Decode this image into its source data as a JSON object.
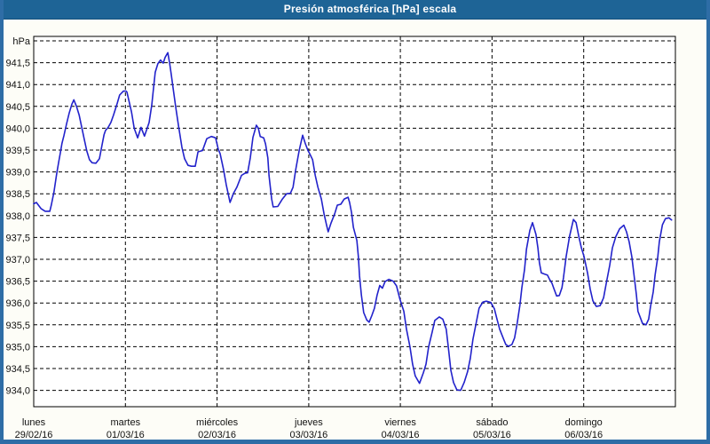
{
  "window": {
    "title": "Presión atmosférica [hPa] escala"
  },
  "colors": {
    "titlebar_bg": "#1e6496",
    "window_border": "#2e6da6",
    "content_bg": "#fdfdf7",
    "plot_bg": "#ffffff",
    "grid": "#000000",
    "line": "#2222cb",
    "label": "#111111"
  },
  "chart_data": {
    "type": "line",
    "title": "Presión atmosférica [hPa] escala",
    "grid": {
      "style": "dashed",
      "on": true
    },
    "legend": "none",
    "y_axis": {
      "unit_label": "hPa",
      "min": 934.0,
      "max": 941.5,
      "tick_step": 0.5,
      "top_gridline_value": 942.0,
      "decimal_separator": ",",
      "tick_values": [
        941.5,
        941.0,
        940.5,
        940.0,
        939.5,
        939.0,
        938.5,
        938.0,
        937.5,
        937.0,
        936.5,
        936.0,
        935.5,
        935.0,
        934.5,
        934.0
      ],
      "tick_labels": [
        "941,5",
        "941,0",
        "940,5",
        "940,0",
        "939,5",
        "939,0",
        "938,5",
        "938,0",
        "937,5",
        "937,0",
        "936,5",
        "936,0",
        "935,5",
        "935,0",
        "934,5",
        "934,0"
      ]
    },
    "x_axis": {
      "hours_total": 168,
      "hours_per_day": 24,
      "days": [
        {
          "name": "lunes",
          "date": "29/02/16"
        },
        {
          "name": "martes",
          "date": "01/03/16"
        },
        {
          "name": "miércoles",
          "date": "02/03/16"
        },
        {
          "name": "jueves",
          "date": "03/03/16"
        },
        {
          "name": "viernes",
          "date": "04/03/16"
        },
        {
          "name": "sábado",
          "date": "05/03/16"
        },
        {
          "name": "domingo",
          "date": "06/03/16"
        }
      ]
    },
    "series": [
      {
        "name": "Presión atmosférica",
        "unit": "hPa",
        "color": "#2222cb",
        "points": [
          [
            0,
            938.27
          ],
          [
            0.7,
            938.3
          ],
          [
            1.9,
            938.16
          ],
          [
            3.0,
            938.1
          ],
          [
            4.2,
            938.1
          ],
          [
            4.6,
            938.24
          ],
          [
            5.3,
            938.54
          ],
          [
            6.0,
            938.95
          ],
          [
            6.5,
            939.21
          ],
          [
            7.0,
            939.45
          ],
          [
            7.4,
            939.65
          ],
          [
            7.9,
            939.83
          ],
          [
            8.6,
            940.1
          ],
          [
            9.3,
            940.35
          ],
          [
            10.0,
            940.55
          ],
          [
            10.5,
            940.65
          ],
          [
            11.2,
            940.5
          ],
          [
            11.9,
            940.3
          ],
          [
            12.5,
            940.05
          ],
          [
            13.2,
            939.76
          ],
          [
            13.9,
            939.48
          ],
          [
            14.6,
            939.28
          ],
          [
            15.3,
            939.21
          ],
          [
            16.3,
            939.2
          ],
          [
            17.2,
            939.3
          ],
          [
            17.9,
            939.62
          ],
          [
            18.4,
            939.85
          ],
          [
            18.8,
            939.95
          ],
          [
            19.5,
            940.02
          ],
          [
            20.2,
            940.13
          ],
          [
            20.9,
            940.3
          ],
          [
            21.8,
            940.55
          ],
          [
            22.5,
            940.76
          ],
          [
            23.5,
            940.85
          ],
          [
            24.2,
            940.85
          ],
          [
            24.4,
            940.83
          ],
          [
            25.6,
            940.37
          ],
          [
            26.3,
            940.0
          ],
          [
            27.2,
            939.78
          ],
          [
            28.1,
            940.02
          ],
          [
            29.0,
            939.82
          ],
          [
            30.2,
            940.13
          ],
          [
            30.9,
            940.53
          ],
          [
            31.4,
            940.94
          ],
          [
            31.8,
            941.28
          ],
          [
            32.5,
            941.48
          ],
          [
            33.2,
            941.56
          ],
          [
            33.9,
            941.49
          ],
          [
            34.4,
            941.62
          ],
          [
            35.1,
            941.73
          ],
          [
            35.6,
            941.48
          ],
          [
            36.0,
            941.24
          ],
          [
            36.5,
            940.91
          ],
          [
            37.2,
            940.47
          ],
          [
            37.9,
            940.06
          ],
          [
            38.8,
            939.56
          ],
          [
            39.5,
            939.3
          ],
          [
            40.4,
            939.15
          ],
          [
            41.3,
            939.13
          ],
          [
            42.3,
            939.13
          ],
          [
            43.0,
            939.46
          ],
          [
            44.2,
            939.49
          ],
          [
            45.3,
            939.76
          ],
          [
            46.5,
            939.81
          ],
          [
            47.6,
            939.78
          ],
          [
            48.3,
            939.52
          ],
          [
            48.8,
            939.42
          ],
          [
            49.7,
            939.05
          ],
          [
            50.4,
            938.71
          ],
          [
            51.4,
            938.3
          ],
          [
            52.3,
            938.51
          ],
          [
            53.2,
            938.65
          ],
          [
            54.4,
            938.92
          ],
          [
            55.3,
            938.97
          ],
          [
            56.0,
            938.98
          ],
          [
            56.7,
            939.32
          ],
          [
            57.4,
            939.79
          ],
          [
            58.3,
            940.07
          ],
          [
            58.8,
            940.0
          ],
          [
            59.3,
            939.81
          ],
          [
            60.2,
            939.78
          ],
          [
            60.7,
            939.64
          ],
          [
            61.3,
            939.32
          ],
          [
            61.6,
            938.92
          ],
          [
            62.3,
            938.38
          ],
          [
            62.7,
            938.2
          ],
          [
            63.9,
            938.21
          ],
          [
            65.1,
            938.38
          ],
          [
            66.2,
            938.5
          ],
          [
            67.2,
            938.51
          ],
          [
            67.9,
            938.65
          ],
          [
            68.6,
            939.05
          ],
          [
            69.5,
            939.49
          ],
          [
            70.4,
            939.84
          ],
          [
            71.1,
            939.65
          ],
          [
            71.8,
            939.49
          ],
          [
            72.3,
            939.41
          ],
          [
            73.0,
            939.28
          ],
          [
            73.7,
            938.92
          ],
          [
            74.4,
            938.65
          ],
          [
            75.3,
            938.38
          ],
          [
            76.0,
            938.04
          ],
          [
            76.7,
            937.77
          ],
          [
            77.1,
            937.63
          ],
          [
            77.8,
            937.82
          ],
          [
            78.8,
            938.04
          ],
          [
            79.5,
            938.24
          ],
          [
            80.4,
            938.26
          ],
          [
            81.3,
            938.38
          ],
          [
            82.3,
            938.42
          ],
          [
            82.7,
            938.3
          ],
          [
            83.2,
            938.07
          ],
          [
            83.7,
            937.73
          ],
          [
            84.6,
            937.43
          ],
          [
            85.0,
            937.06
          ],
          [
            85.3,
            936.62
          ],
          [
            85.8,
            936.18
          ],
          [
            86.4,
            935.78
          ],
          [
            87.2,
            935.61
          ],
          [
            87.8,
            935.56
          ],
          [
            88.5,
            935.71
          ],
          [
            89.2,
            935.88
          ],
          [
            89.9,
            936.18
          ],
          [
            90.6,
            936.4
          ],
          [
            91.3,
            936.34
          ],
          [
            92.0,
            936.49
          ],
          [
            93.0,
            936.54
          ],
          [
            94.1,
            936.5
          ],
          [
            95.0,
            936.39
          ],
          [
            95.9,
            936.08
          ],
          [
            96.9,
            935.81
          ],
          [
            97.6,
            935.4
          ],
          [
            98.5,
            935.0
          ],
          [
            99.2,
            934.6
          ],
          [
            99.9,
            934.33
          ],
          [
            101.0,
            934.16
          ],
          [
            102.0,
            934.4
          ],
          [
            102.7,
            934.6
          ],
          [
            103.4,
            935.0
          ],
          [
            104.3,
            935.33
          ],
          [
            105.0,
            935.6
          ],
          [
            106.2,
            935.68
          ],
          [
            107.1,
            935.63
          ],
          [
            108.0,
            935.4
          ],
          [
            108.7,
            934.87
          ],
          [
            109.2,
            934.46
          ],
          [
            109.9,
            934.18
          ],
          [
            110.8,
            934.01
          ],
          [
            111.8,
            934.0
          ],
          [
            112.7,
            934.18
          ],
          [
            113.6,
            934.43
          ],
          [
            114.3,
            934.73
          ],
          [
            115.0,
            935.17
          ],
          [
            115.9,
            935.57
          ],
          [
            116.6,
            935.88
          ],
          [
            117.6,
            936.02
          ],
          [
            118.5,
            936.04
          ],
          [
            119.7,
            936.01
          ],
          [
            120.6,
            935.87
          ],
          [
            121.3,
            935.63
          ],
          [
            122.0,
            935.4
          ],
          [
            122.9,
            935.2
          ],
          [
            123.6,
            935.05
          ],
          [
            124.3,
            935.01
          ],
          [
            125.2,
            935.05
          ],
          [
            125.9,
            935.2
          ],
          [
            126.6,
            935.54
          ],
          [
            127.3,
            935.95
          ],
          [
            127.8,
            936.35
          ],
          [
            128.5,
            936.76
          ],
          [
            129.0,
            937.23
          ],
          [
            129.9,
            937.66
          ],
          [
            130.6,
            937.84
          ],
          [
            131.5,
            937.57
          ],
          [
            132.0,
            937.26
          ],
          [
            132.4,
            936.92
          ],
          [
            132.9,
            936.69
          ],
          [
            133.8,
            936.66
          ],
          [
            134.5,
            936.64
          ],
          [
            135.0,
            936.55
          ],
          [
            135.7,
            936.45
          ],
          [
            136.2,
            936.33
          ],
          [
            136.9,
            936.16
          ],
          [
            137.6,
            936.17
          ],
          [
            138.3,
            936.35
          ],
          [
            138.7,
            936.58
          ],
          [
            139.4,
            937.06
          ],
          [
            140.3,
            937.53
          ],
          [
            141.3,
            937.91
          ],
          [
            142.0,
            937.84
          ],
          [
            142.7,
            937.53
          ],
          [
            143.4,
            937.26
          ],
          [
            144.1,
            937.06
          ],
          [
            145.0,
            936.69
          ],
          [
            145.7,
            936.32
          ],
          [
            146.4,
            936.05
          ],
          [
            147.3,
            935.92
          ],
          [
            148.3,
            935.94
          ],
          [
            149.2,
            936.12
          ],
          [
            149.9,
            936.45
          ],
          [
            150.8,
            936.86
          ],
          [
            151.5,
            937.26
          ],
          [
            152.4,
            937.52
          ],
          [
            153.4,
            937.7
          ],
          [
            154.5,
            937.78
          ],
          [
            155.2,
            937.63
          ],
          [
            155.9,
            937.4
          ],
          [
            156.6,
            937.06
          ],
          [
            157.1,
            936.69
          ],
          [
            157.8,
            936.18
          ],
          [
            158.2,
            935.81
          ],
          [
            159.4,
            935.53
          ],
          [
            160.3,
            935.5
          ],
          [
            161.0,
            935.63
          ],
          [
            161.5,
            935.92
          ],
          [
            162.2,
            936.25
          ],
          [
            162.7,
            936.65
          ],
          [
            163.4,
            937.06
          ],
          [
            163.8,
            937.4
          ],
          [
            164.6,
            937.79
          ],
          [
            165.4,
            937.93
          ],
          [
            166.3,
            937.95
          ],
          [
            167.0,
            937.9
          ]
        ]
      }
    ]
  }
}
